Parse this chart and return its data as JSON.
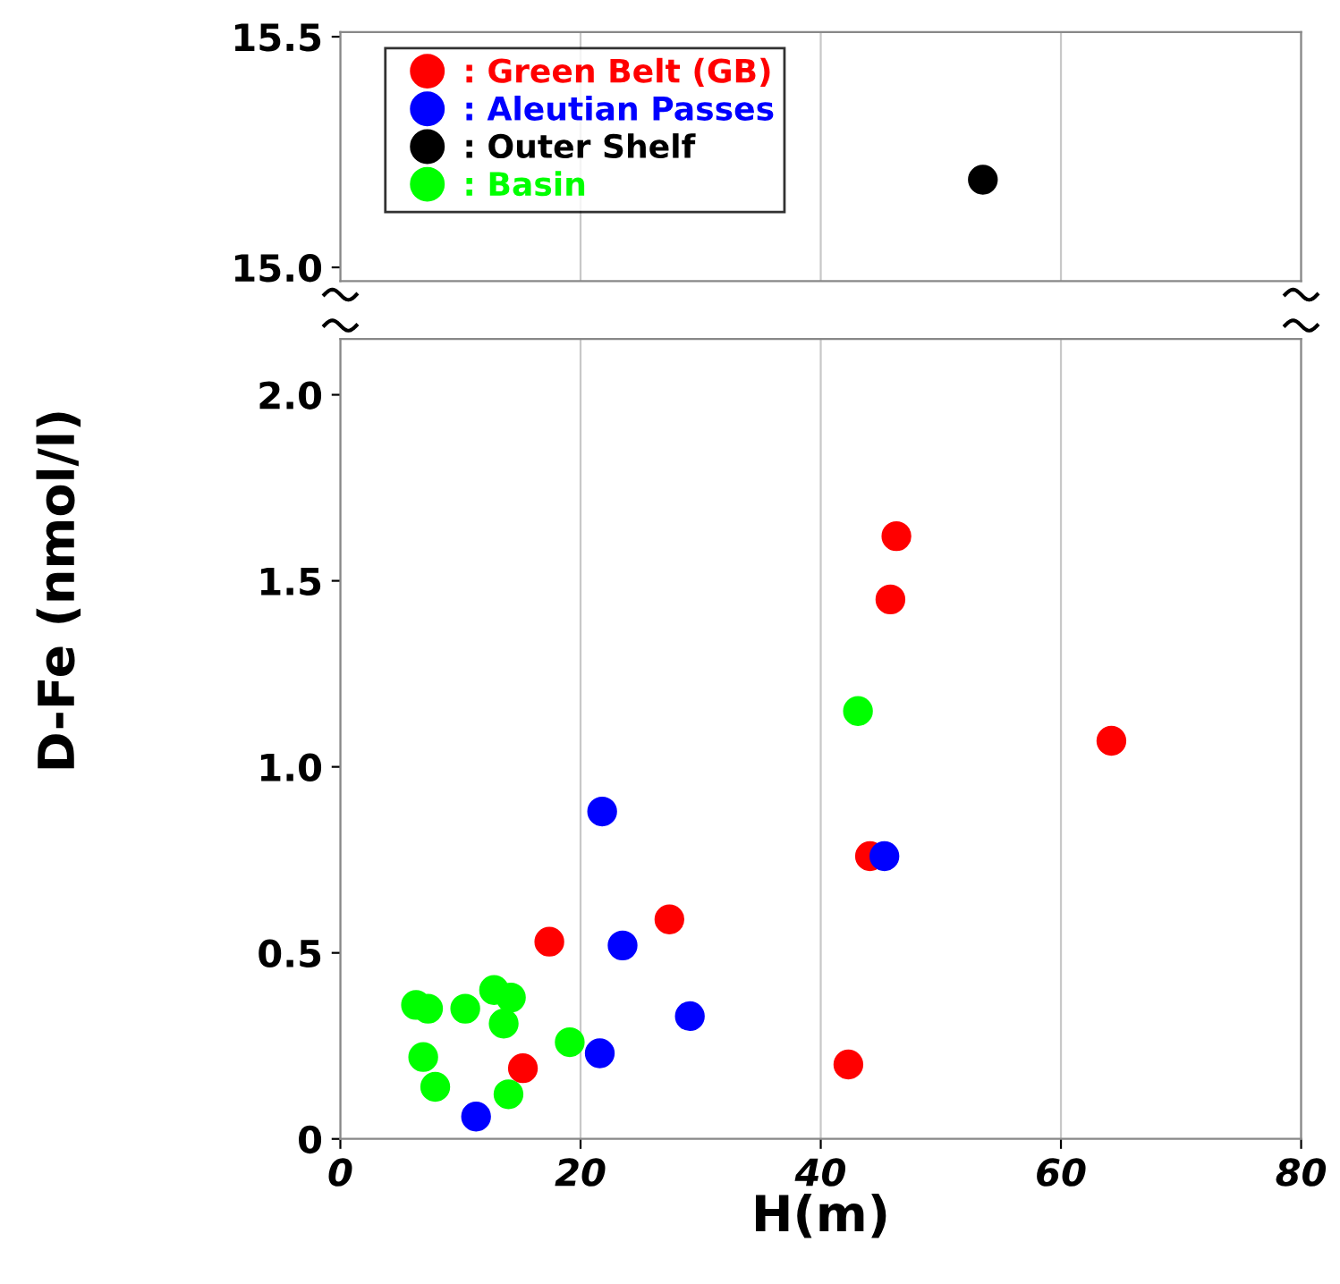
{
  "chart_data": [
    {
      "type": "scatter",
      "xlim": [
        0,
        80
      ],
      "xticks": [
        0,
        20,
        40,
        60,
        80
      ],
      "ylim": [
        14.97,
        15.51
      ],
      "yticks": [
        {
          "value": 15.0,
          "label": "15.0"
        },
        15.5
      ],
      "tick_labels": "y",
      "grid": "x",
      "legend": "top left",
      "marker": "circle",
      "series": [
        {
          "name": ": Green Belt (GB)",
          "color": "#ff0000"
        },
        {
          "name": ": Aleutian Passes",
          "color": "#0000ff"
        },
        {
          "name": ": Outer Shelf",
          "color": "#000000",
          "x": [
            53.5
          ],
          "values": [
            15.19
          ]
        },
        {
          "name": ": Basin",
          "color": "#00ff00"
        }
      ]
    },
    {
      "type": "scatter",
      "xlabel": "H(m)",
      "ylabel": "D-Fe (nmol/l)",
      "xlim": [
        0,
        80
      ],
      "xticks": [
        0,
        20,
        40,
        60,
        80
      ],
      "ylim": [
        0,
        2.15
      ],
      "yticks": [
        0,
        0.5,
        {
          "value": 1.0,
          "label": "1.0"
        },
        1.5,
        {
          "value": 2.0,
          "label": "2.0"
        }
      ],
      "grid": "x",
      "marker": "circle",
      "series": [
        {
          "color": "#ff0000",
          "x": [
            17.4,
            27.4,
            15.2,
            42.3,
            44.1,
            45.8,
            46.3,
            64.2
          ],
          "values": [
            0.53,
            0.59,
            0.19,
            0.2,
            0.76,
            1.45,
            1.62,
            1.07
          ]
        },
        {
          "color": "#0000ff",
          "x": [
            21.8,
            23.5,
            29.1,
            21.6,
            11.3,
            45.3
          ],
          "values": [
            0.88,
            0.52,
            0.33,
            0.23,
            0.06,
            0.76
          ]
        },
        {
          "color": "#00ff00",
          "x": [
            43.1,
            6.3,
            7.3,
            10.4,
            12.8,
            14.2,
            13.6,
            19.1,
            6.9,
            7.9,
            14.0
          ],
          "values": [
            1.15,
            0.36,
            0.35,
            0.35,
            0.4,
            0.38,
            0.31,
            0.26,
            0.22,
            0.14,
            0.12
          ]
        }
      ]
    }
  ]
}
